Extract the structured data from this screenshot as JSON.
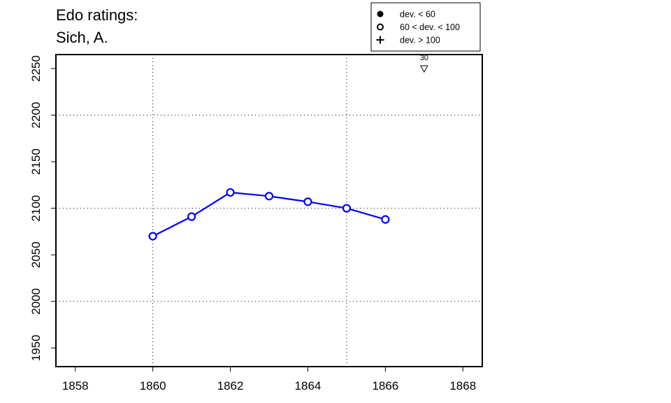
{
  "title_lines": [
    "Edo ratings:",
    "Sich, A."
  ],
  "chart_data": {
    "type": "line",
    "x": [
      1860,
      1861,
      1862,
      1863,
      1864,
      1865,
      1866
    ],
    "series": [
      {
        "values": [
          2070,
          2091,
          2117,
          2113,
          2107,
          2100,
          2088
        ],
        "color": "#0000ff",
        "marker": "open-circle"
      }
    ],
    "xlim": [
      1857.5,
      1868.5
    ],
    "ylim": [
      1930,
      2265
    ],
    "x_ticks": [
      1858,
      1860,
      1862,
      1864,
      1866,
      1868
    ],
    "y_ticks": [
      1950,
      2000,
      2050,
      2100,
      2150,
      2200,
      2250
    ],
    "grid_x": [
      1860,
      1865
    ],
    "grid_y": [
      2000,
      2100,
      2200
    ],
    "grid": true,
    "legend": {
      "position": "top-right",
      "entries": [
        {
          "marker": "filled-circle",
          "label": "dev. < 60"
        },
        {
          "marker": "open-circle",
          "label": "60 < dev. < 100"
        },
        {
          "marker": "plus",
          "label": "dev. > 100"
        }
      ]
    },
    "annotations": [
      {
        "x": 1867,
        "y": 2250,
        "label": "30",
        "marker": "down-triangle"
      }
    ]
  }
}
